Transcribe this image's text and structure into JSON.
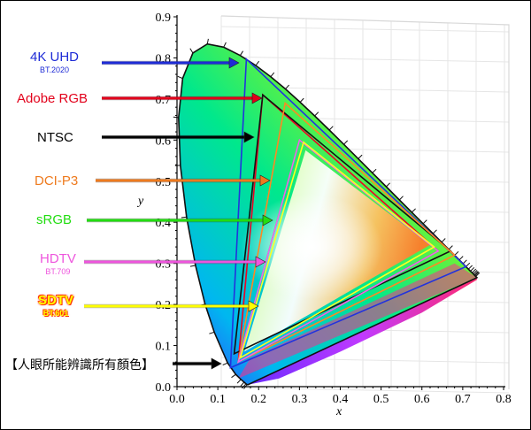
{
  "labels": {
    "uhd": {
      "main": "4K UHD",
      "sub": "BT.2020",
      "color": "#1e2bd6"
    },
    "adobe": {
      "main": "Adobe RGB",
      "color": "#e2001a"
    },
    "ntsc": {
      "main": "NTSC",
      "color": "#000000"
    },
    "dcip3": {
      "main": "DCI-P3",
      "color": "#ee7a1e"
    },
    "srgb": {
      "main": "sRGB",
      "color": "#22dd11"
    },
    "hdtv": {
      "main": "HDTV",
      "sub": "BT.709",
      "color": "#ee55dd"
    },
    "sdtv": {
      "main": "SDTV",
      "sub": "BT.601",
      "color": "#ffff00"
    },
    "human": {
      "main": "【人眼所能辨識所有顏色】",
      "color": "#000000"
    }
  },
  "axes": {
    "x_title": "x",
    "y_title": "y",
    "x_ticks": [
      "0.0",
      "0.1",
      "0.2",
      "0.3",
      "0.4",
      "0.5",
      "0.6",
      "0.7",
      "0.8"
    ],
    "y_ticks": [
      "0.0",
      "0.1",
      "0.2",
      "0.3",
      "0.4",
      "0.5",
      "0.6",
      "0.7",
      "0.8",
      "0.9"
    ]
  },
  "gamuts": [
    {
      "name": "4K UHD",
      "color": "#2233dd",
      "points": [
        [
          0.708,
          0.292
        ],
        [
          0.17,
          0.797
        ],
        [
          0.131,
          0.046
        ]
      ]
    },
    {
      "name": "Adobe RGB",
      "color": "#ee0022",
      "points": [
        [
          0.64,
          0.33
        ],
        [
          0.21,
          0.71
        ],
        [
          0.15,
          0.06
        ]
      ]
    },
    {
      "name": "NTSC",
      "color": "#111111",
      "points": [
        [
          0.67,
          0.33
        ],
        [
          0.21,
          0.71
        ],
        [
          0.14,
          0.08
        ]
      ]
    },
    {
      "name": "DCI-P3",
      "color": "#ff8822",
      "points": [
        [
          0.68,
          0.32
        ],
        [
          0.265,
          0.69
        ],
        [
          0.15,
          0.06
        ]
      ]
    },
    {
      "name": "sRGB",
      "color": "#33dd22",
      "points": [
        [
          0.64,
          0.33
        ],
        [
          0.3,
          0.6
        ],
        [
          0.15,
          0.06
        ]
      ]
    },
    {
      "name": "HDTV",
      "color": "#ee66ee",
      "points": [
        [
          0.64,
          0.33
        ],
        [
          0.3,
          0.6
        ],
        [
          0.15,
          0.06
        ]
      ]
    },
    {
      "name": "SDTV",
      "color": "#ffff22",
      "points": [
        [
          0.63,
          0.34
        ],
        [
          0.31,
          0.595
        ],
        [
          0.155,
          0.07
        ]
      ]
    }
  ]
}
